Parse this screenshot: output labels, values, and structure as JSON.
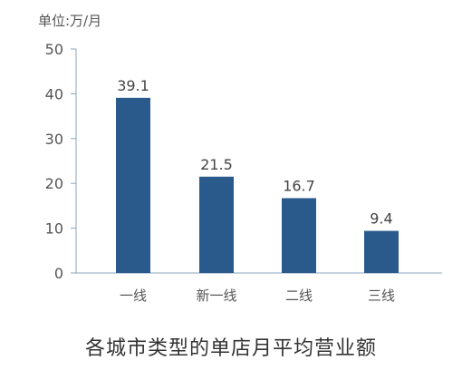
{
  "chart_data": {
    "type": "bar",
    "title": "各城市类型的单店月平均营业额",
    "unit_label": "单位:万/月",
    "xlabel": "",
    "ylabel": "",
    "categories": [
      "一线",
      "新一线",
      "二线",
      "三线"
    ],
    "values": [
      39.1,
      21.5,
      16.7,
      9.4
    ],
    "data_labels": [
      "39.1",
      "21.5",
      "16.7",
      "9.4"
    ],
    "ylim": [
      0,
      50
    ],
    "y_ticks": [
      0,
      10,
      20,
      30,
      40,
      50
    ],
    "grid": false,
    "legend": "none",
    "bar_color": "#2a5a8c",
    "axis_color": "#8aa4bf",
    "tick_label_color": "#555555",
    "data_label_color": "#444444"
  }
}
